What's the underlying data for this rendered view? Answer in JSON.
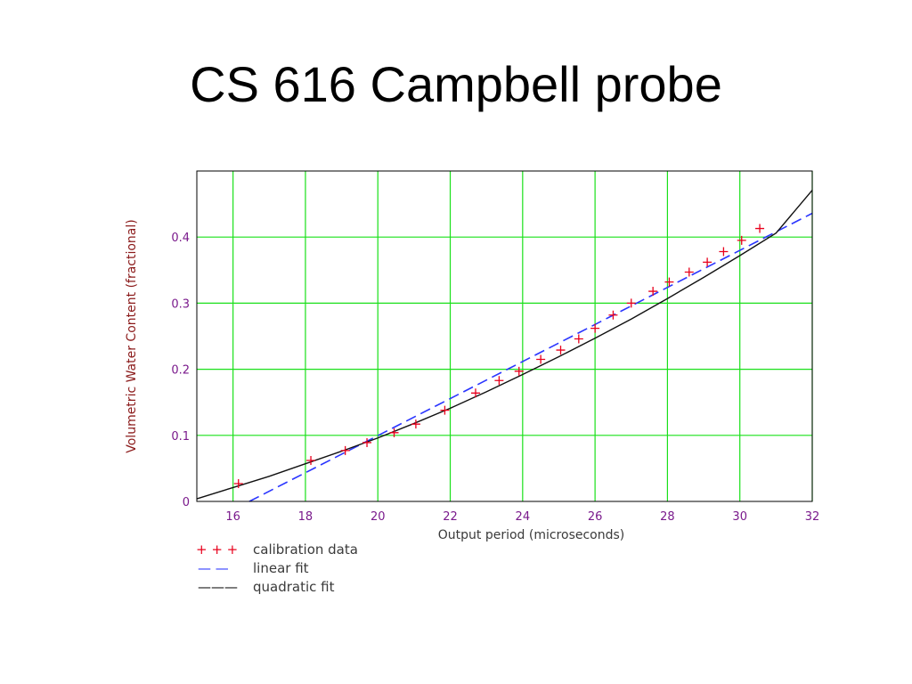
{
  "slide": {
    "title": "CS 616 Campbell probe"
  },
  "chart_data": {
    "type": "line",
    "title": "",
    "xlabel": "Output period (microseconds)",
    "ylabel": "Volumetric Water Content (fractional)",
    "xlim": [
      15,
      32
    ],
    "ylim": [
      0,
      0.5
    ],
    "grid": true,
    "x_ticks": [
      16,
      18,
      20,
      22,
      24,
      26,
      28,
      30,
      32
    ],
    "y_ticks": [
      0,
      0.1,
      0.2,
      0.3,
      0.4
    ],
    "x_tick_labels": [
      "16",
      "18",
      "20",
      "22",
      "24",
      "26",
      "28",
      "30",
      "32"
    ],
    "y_tick_labels": [
      "0",
      "0.1",
      "0.2",
      "0.3",
      "0.4"
    ],
    "legend_position": "below-left",
    "series": [
      {
        "name": "calibration data",
        "kind": "scatter",
        "marker": "+",
        "legend_symbol": "+ + +",
        "color": "#e8001c",
        "x": [
          16.15,
          18.15,
          19.1,
          19.7,
          20.45,
          21.05,
          21.85,
          22.7,
          23.35,
          23.9,
          24.5,
          25.05,
          25.55,
          26.0,
          26.5,
          27.0,
          27.6,
          28.05,
          28.6,
          29.1,
          29.55,
          30.05,
          30.55
        ],
        "y": [
          0.027,
          0.062,
          0.077,
          0.089,
          0.104,
          0.117,
          0.138,
          0.164,
          0.183,
          0.197,
          0.215,
          0.229,
          0.246,
          0.262,
          0.282,
          0.3,
          0.318,
          0.332,
          0.347,
          0.362,
          0.378,
          0.395,
          0.413
        ]
      },
      {
        "name": "linear fit",
        "kind": "line",
        "style": "dashed",
        "legend_symbol": "— —",
        "color": "#2a35ff",
        "x": [
          16.45,
          32
        ],
        "y": [
          0.0,
          0.436
        ]
      },
      {
        "name": "quadratic fit",
        "kind": "line",
        "style": "solid",
        "legend_symbol": "———",
        "color": "#111111",
        "x": [
          15,
          16,
          17,
          18,
          19,
          20,
          21,
          22,
          23,
          24,
          25,
          26,
          27,
          28,
          29,
          30,
          31,
          32
        ],
        "y": [
          0.004,
          0.021,
          0.038,
          0.057,
          0.076,
          0.096,
          0.118,
          0.141,
          0.166,
          0.192,
          0.219,
          0.247,
          0.276,
          0.307,
          0.339,
          0.372,
          0.406,
          0.471
        ]
      }
    ]
  },
  "colors": {
    "grid": "#19e019",
    "tick_label": "#7a1a8c",
    "axis_label": "#8b1a1a",
    "frame": "#000000"
  }
}
